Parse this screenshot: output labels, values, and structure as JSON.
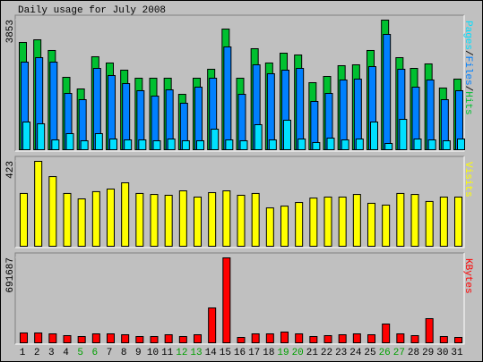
{
  "title": "Daily usage for July 2008",
  "categories": [
    "1",
    "2",
    "3",
    "4",
    "5",
    "6",
    "7",
    "8",
    "9",
    "10",
    "11",
    "12",
    "13",
    "14",
    "15",
    "16",
    "17",
    "18",
    "19",
    "20",
    "21",
    "22",
    "23",
    "24",
    "25",
    "26",
    "27",
    "28",
    "29",
    "30",
    "31"
  ],
  "category_colors": [
    "#000000",
    "#000000",
    "#000000",
    "#000000",
    "#00a000",
    "#00a000",
    "#000000",
    "#000000",
    "#000000",
    "#000000",
    "#000000",
    "#00a000",
    "#00a000",
    "#000000",
    "#000000",
    "#000000",
    "#000000",
    "#000000",
    "#00a000",
    "#00a000",
    "#000000",
    "#000000",
    "#000000",
    "#000000",
    "#000000",
    "#00a000",
    "#00a000",
    "#000000",
    "#000000",
    "#000000",
    "#000000"
  ],
  "chart_data": [
    {
      "type": "bar",
      "ylim": [
        0,
        3853
      ],
      "yticks": [
        3853
      ],
      "legend_separator": "/",
      "series": [
        {
          "name": "Hits",
          "color": "#00c030",
          "values": [
            3189,
            3268,
            2950,
            2152,
            1807,
            2764,
            2578,
            2365,
            2126,
            2126,
            2126,
            1647,
            2126,
            2392,
            3587,
            2126,
            3003,
            2578,
            2870,
            2817,
            1993,
            2179,
            2498,
            2524,
            2950,
            3853,
            2737,
            2418,
            2551,
            1834,
            2099
          ]
        },
        {
          "name": "Files",
          "color": "#0080ff",
          "values": [
            2604,
            2737,
            2604,
            1674,
            1488,
            2418,
            2206,
            1966,
            1754,
            1594,
            1780,
            1382,
            1860,
            2126,
            3056,
            1647,
            2524,
            2259,
            2365,
            2418,
            1435,
            1674,
            2073,
            2099,
            2471,
            3428,
            2392,
            1860,
            2073,
            1488,
            1754
          ]
        },
        {
          "name": "Pages",
          "color": "#00e0ff",
          "values": [
            824,
            771,
            292,
            478,
            266,
            478,
            319,
            292,
            292,
            266,
            319,
            266,
            266,
            611,
            292,
            266,
            744,
            292,
            877,
            319,
            213,
            345,
            292,
            319,
            824,
            186,
            903,
            319,
            292,
            266,
            319
          ]
        }
      ]
    },
    {
      "type": "bar",
      "ylim": [
        0,
        423
      ],
      "yticks": [
        423
      ],
      "series": [
        {
          "name": "Visits",
          "color": "#ffff00",
          "values": [
            263,
            423,
            347,
            263,
            236,
            272,
            285,
            316,
            263,
            258,
            254,
            276,
            245,
            267,
            276,
            254,
            263,
            191,
            200,
            218,
            240,
            245,
            245,
            258,
            214,
            205,
            263,
            258,
            223,
            245,
            245
          ]
        }
      ]
    },
    {
      "type": "bar",
      "ylim": [
        0,
        691687
      ],
      "yticks": [
        691687
      ],
      "series": [
        {
          "name": "KBytes",
          "color": "#ff0000",
          "values": [
            80090,
            80090,
            72809,
            58247,
            50966,
            72809,
            72809,
            65528,
            50966,
            50966,
            65528,
            50966,
            65528,
            283956,
            691687,
            43685,
            72809,
            72809,
            87371,
            72809,
            50966,
            58247,
            65528,
            72809,
            65528,
            152899,
            72809,
            58247,
            196585,
            50966,
            43685
          ]
        }
      ]
    }
  ]
}
